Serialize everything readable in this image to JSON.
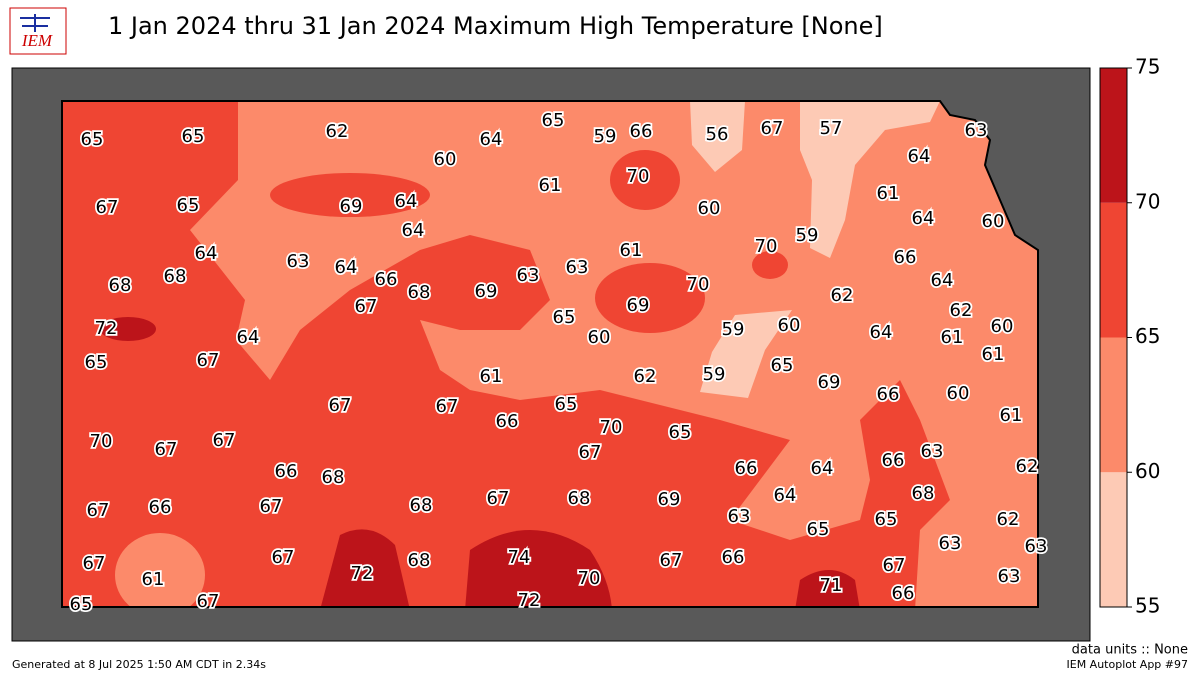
{
  "header": {
    "title": "1 Jan 2024 thru 31 Jan 2024 Maximum High Temperature [None]",
    "logo_text": "IEM"
  },
  "colorbar": {
    "ticks": [
      55,
      60,
      65,
      70,
      75
    ],
    "colors": [
      "#fdcab5",
      "#fc8a6a",
      "#ef4533",
      "#bc141a"
    ]
  },
  "stations": [
    65,
    65,
    62,
    60,
    64,
    65,
    59,
    66,
    56,
    67,
    57,
    63,
    64,
    70,
    61,
    60,
    61,
    64,
    60,
    67,
    65,
    69,
    64,
    64,
    59,
    70,
    66,
    64,
    63,
    64,
    66,
    61,
    63,
    63,
    68,
    68,
    68,
    69,
    67,
    70,
    64,
    62,
    62,
    69,
    65,
    72,
    64,
    60,
    59,
    60,
    64,
    61,
    60,
    65,
    67,
    61,
    62,
    59,
    65,
    69,
    61,
    66,
    60,
    67,
    67,
    65,
    61,
    70,
    67,
    67,
    66,
    70,
    65,
    67,
    66,
    68,
    66,
    64,
    66,
    63,
    62,
    67,
    66,
    67,
    68,
    67,
    68,
    69,
    64,
    68,
    63,
    65,
    65,
    62,
    63,
    63,
    67,
    61,
    67,
    72,
    68,
    74,
    70,
    67,
    66,
    71,
    67,
    63,
    65,
    67,
    72,
    66
  ],
  "footer": {
    "generated": "Generated at 8 Jul 2025 1:50 AM CDT in 2.34s",
    "units": "data units :: None",
    "app": "IEM Autoplot App #97"
  }
}
